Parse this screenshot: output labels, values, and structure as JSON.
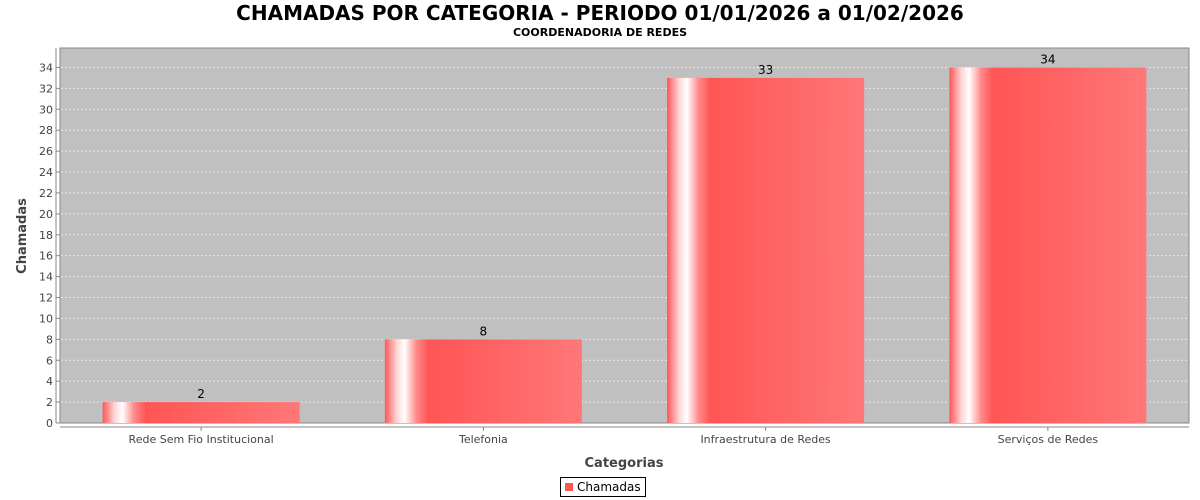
{
  "chart_data": {
    "type": "bar",
    "title": "CHAMADAS POR CATEGORIA - PERIODO 01/01/2026 a 01/02/2026",
    "subtitle": "COORDENADORIA DE REDES",
    "xlabel": "Categorias",
    "ylabel": "Chamadas",
    "categories": [
      "Rede Sem Fio Institucional",
      "Telefonia",
      "Infraestrutura de Redes",
      "Serviços de Redes"
    ],
    "series": [
      {
        "name": "Chamadas",
        "values": [
          2,
          8,
          33,
          34
        ]
      }
    ],
    "ylim": [
      0,
      35
    ],
    "yticks": [
      0,
      2,
      4,
      6,
      8,
      10,
      12,
      14,
      16,
      18,
      20,
      22,
      24,
      26,
      28,
      30,
      32,
      34
    ],
    "grid": true,
    "legend_position": "bottom",
    "bar_color": "#ff5555",
    "plot_background": "#c0c0c0"
  }
}
